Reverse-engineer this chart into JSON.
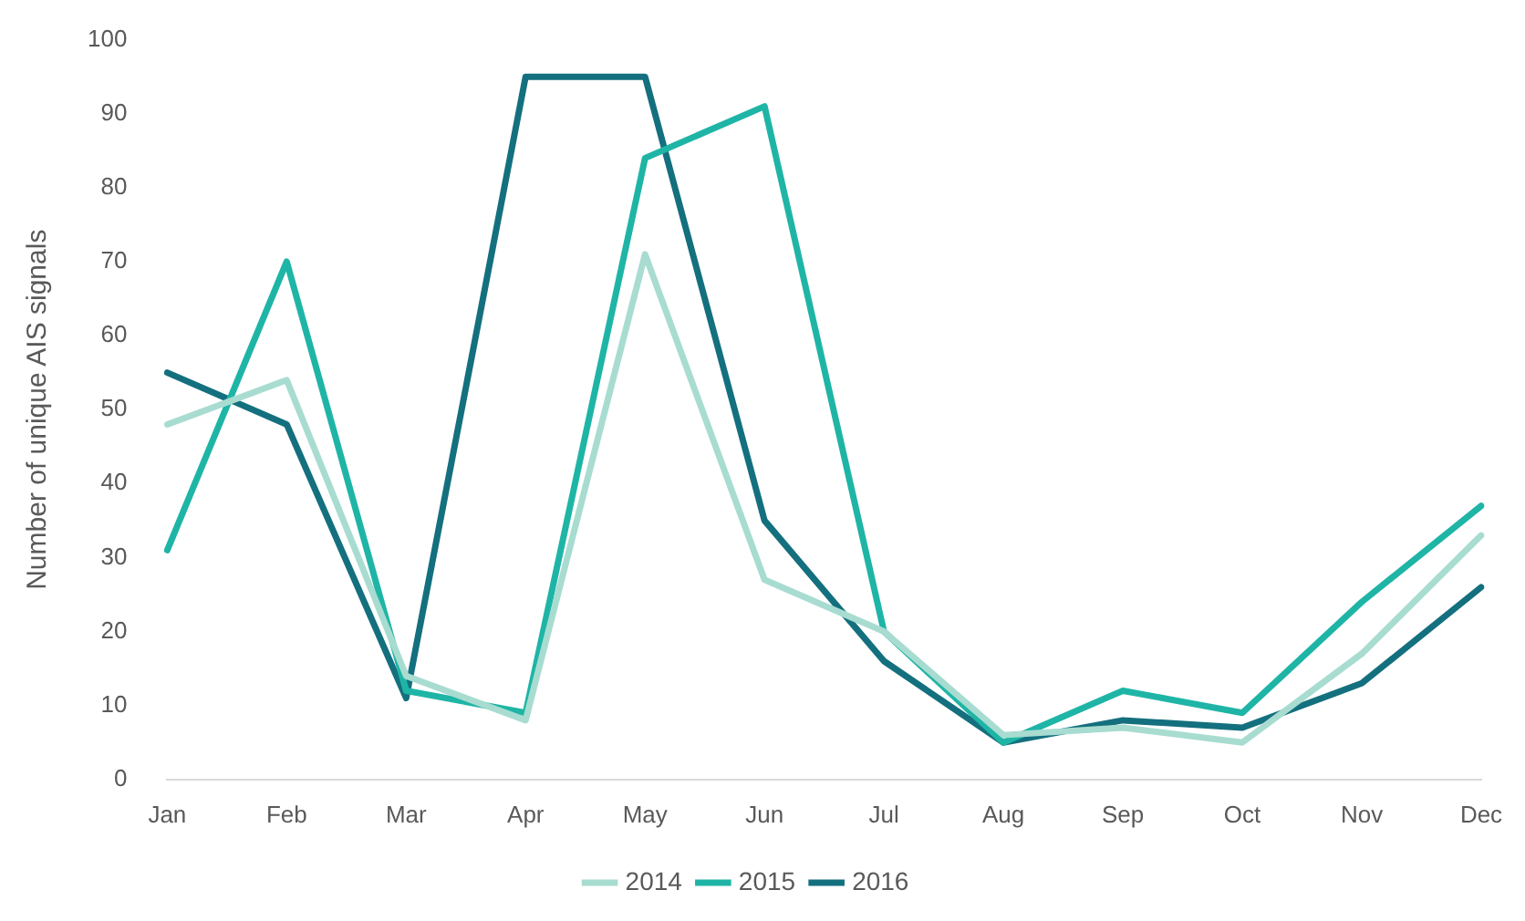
{
  "chart_data": {
    "type": "line",
    "ylabel": "Number of unique AIS signals",
    "categories": [
      "Jan",
      "Feb",
      "Mar",
      "Apr",
      "May",
      "Jun",
      "Jul",
      "Aug",
      "Sep",
      "Oct",
      "Nov",
      "Dec"
    ],
    "series": [
      {
        "name": "2014",
        "color": "#a8dcd1",
        "values": [
          48,
          54,
          14,
          8,
          71,
          27,
          20,
          6,
          7,
          5,
          17,
          33
        ]
      },
      {
        "name": "2015",
        "color": "#1fb5a6",
        "values": [
          31,
          70,
          12,
          9,
          84,
          91,
          20,
          5,
          12,
          9,
          24,
          37
        ]
      },
      {
        "name": "2016",
        "color": "#14707e",
        "values": [
          55,
          48,
          11,
          95,
          95,
          35,
          16,
          5,
          8,
          7,
          13,
          26
        ]
      }
    ],
    "ylim": [
      0,
      100
    ],
    "yticks": [
      0,
      10,
      20,
      30,
      40,
      50,
      60,
      70,
      80,
      90,
      100
    ],
    "grid": false,
    "legend": "bottom",
    "marker": "none",
    "line_style": "solid"
  }
}
